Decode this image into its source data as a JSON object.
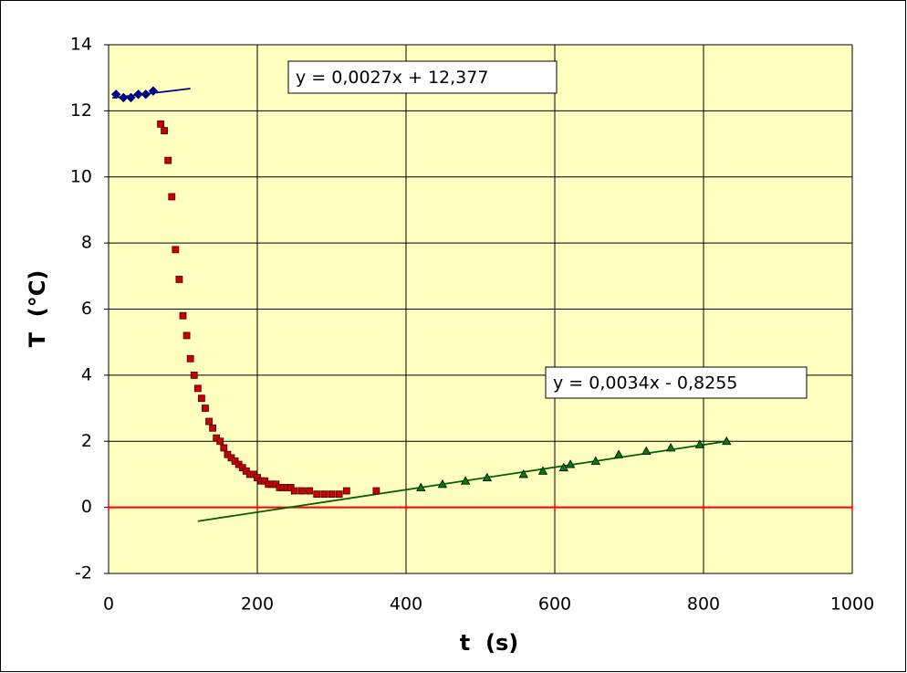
{
  "chart_data": {
    "type": "scatter",
    "x_label": "t  (s)",
    "y_label": "T  (°C)",
    "xlim": [
      0,
      1000
    ],
    "xticks": [
      0,
      200,
      400,
      600,
      800,
      1000
    ],
    "ylim": [
      -2,
      14
    ],
    "yticks": [
      -2,
      0,
      2,
      4,
      6,
      8,
      10,
      12,
      14
    ],
    "grid": true,
    "plot_background": "#ffffc0",
    "zero_line_color": "#ff0000",
    "series": [
      {
        "marker": "diamond",
        "color": "#000080",
        "x": [
          10,
          20,
          30,
          40,
          50,
          60
        ],
        "values": [
          12.5,
          12.4,
          12.4,
          12.5,
          12.5,
          12.6
        ]
      },
      {
        "marker": "square",
        "color": "#cc0000",
        "x": [
          70,
          75,
          80,
          85,
          90,
          95,
          100,
          105,
          110,
          115,
          120,
          125,
          130,
          135,
          140,
          145,
          150,
          155,
          160,
          165,
          170,
          175,
          180,
          185,
          190,
          195,
          200,
          205,
          210,
          215,
          220,
          225,
          230,
          235,
          240,
          245,
          250,
          260,
          270,
          280,
          290,
          300,
          310,
          320,
          360
        ],
        "values": [
          11.6,
          11.4,
          10.5,
          9.4,
          7.8,
          6.9,
          5.8,
          5.2,
          4.5,
          4.0,
          3.6,
          3.3,
          3.0,
          2.6,
          2.4,
          2.1,
          2.0,
          1.8,
          1.6,
          1.5,
          1.4,
          1.3,
          1.2,
          1.1,
          1.0,
          1.0,
          0.9,
          0.8,
          0.8,
          0.7,
          0.7,
          0.7,
          0.6,
          0.6,
          0.6,
          0.6,
          0.5,
          0.5,
          0.5,
          0.4,
          0.4,
          0.4,
          0.4,
          0.5,
          0.5
        ]
      },
      {
        "marker": "triangle",
        "color": "#008000",
        "x": [
          420,
          449,
          480,
          509,
          558,
          584,
          612,
          621,
          655,
          686,
          723,
          756,
          795,
          831
        ],
        "values": [
          0.6,
          0.7,
          0.8,
          0.9,
          1.0,
          1.1,
          1.2,
          1.3,
          1.4,
          1.6,
          1.7,
          1.8,
          1.9,
          2.0
        ]
      }
    ],
    "trendlines": [
      {
        "equation": "y = 0,0027x + 12,377",
        "slope": 0.0027,
        "intercept": 12.377,
        "x_range": [
          5,
          110
        ],
        "color": "#000080"
      },
      {
        "equation": "y = 0,0034x - 0,8255",
        "slope": 0.0034,
        "intercept": -0.8255,
        "x_range": [
          120,
          830
        ],
        "color": "#006000"
      }
    ]
  }
}
